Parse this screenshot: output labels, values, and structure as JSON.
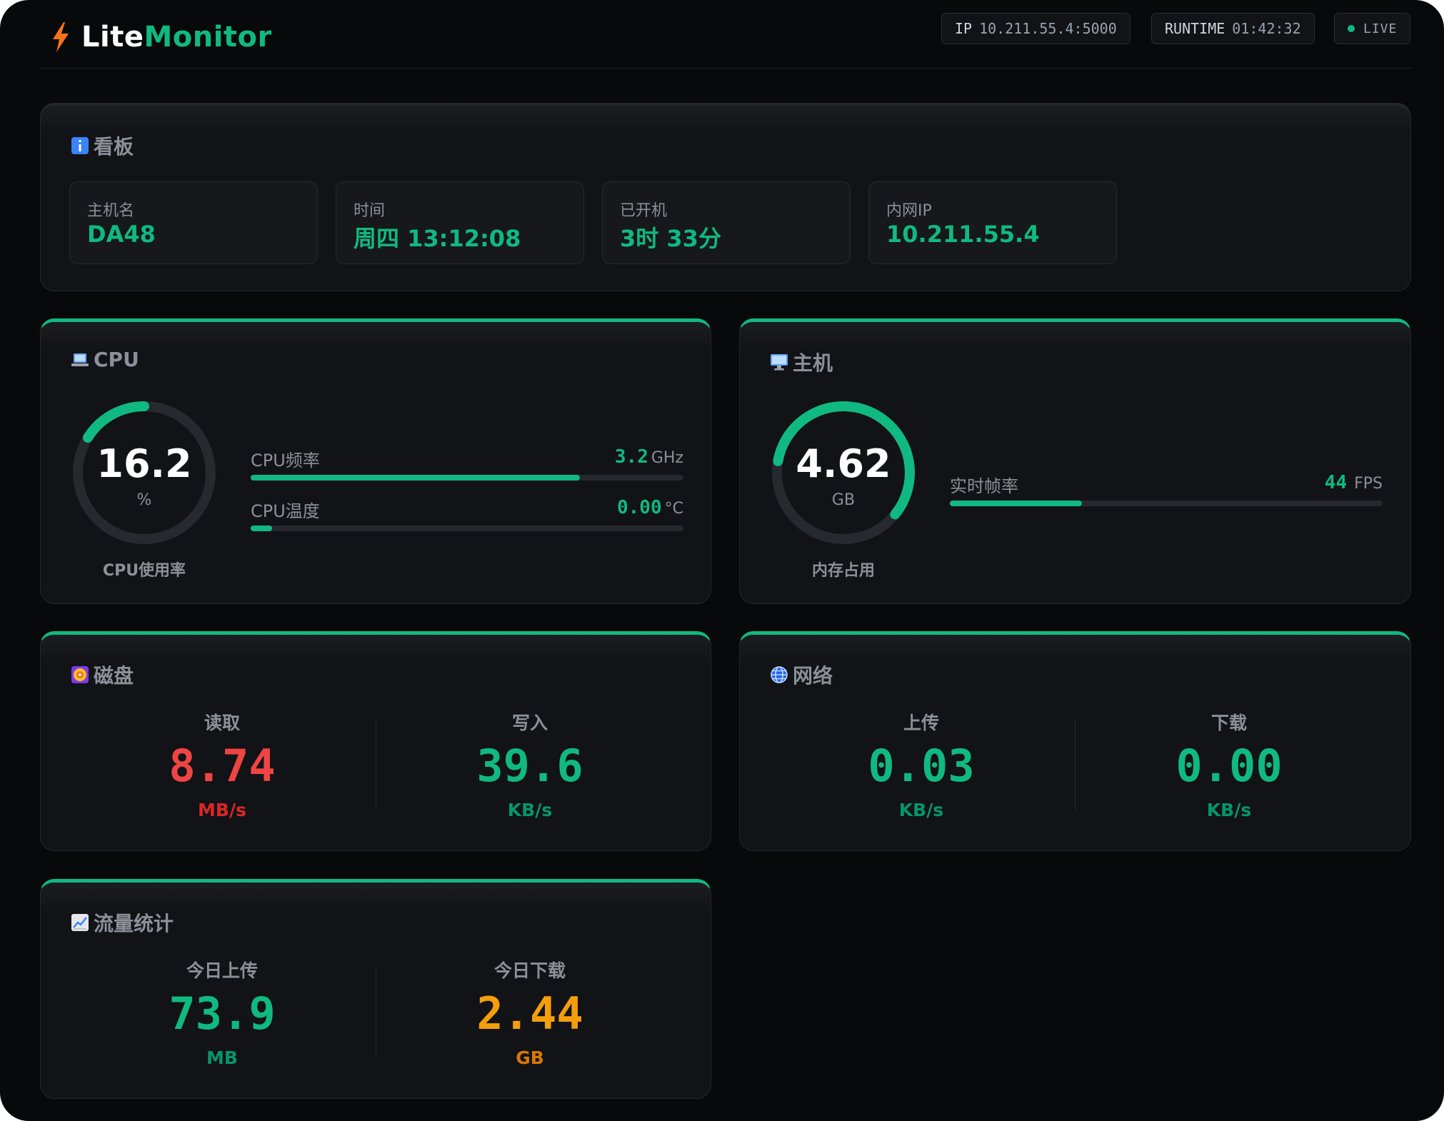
{
  "header": {
    "brand_part1": "Lite",
    "brand_part2": "Monitor",
    "ip_label": "IP",
    "ip_value": "10.211.55.4:5000",
    "runtime_label": "RUNTIME",
    "runtime_value": "01:42:32",
    "live_label": "LIVE"
  },
  "dashboard": {
    "title": "看板",
    "icon": "info-icon",
    "cards": [
      {
        "label": "主机名",
        "value": "DA48"
      },
      {
        "label": "时间",
        "value": "周四 13:12:08"
      },
      {
        "label": "已开机",
        "value": "3时 33分"
      },
      {
        "label": "内网IP",
        "value": "10.211.55.4"
      }
    ]
  },
  "cpu": {
    "title": "CPU",
    "icon": "laptop-icon",
    "usage_value": "16.2",
    "usage_unit": "%",
    "usage_caption": "CPU使用率",
    "usage_fraction": 0.162,
    "freq_label": "CPU频率",
    "freq_value": "3.2",
    "freq_unit": "GHz",
    "freq_fraction": 0.76,
    "temp_label": "CPU温度",
    "temp_value": "0.00",
    "temp_unit": "°C",
    "temp_fraction": 0.05
  },
  "host": {
    "title": "主机",
    "icon": "desktop-icon",
    "mem_value": "4.62",
    "mem_unit": "GB",
    "mem_caption": "内存占用",
    "mem_fraction": 0.58,
    "fps_label": "实时帧率",
    "fps_value": "44",
    "fps_unit": "FPS",
    "fps_fraction": 0.305
  },
  "disk": {
    "title": "磁盘",
    "icon": "disc-icon",
    "read_label": "读取",
    "read_value": "8.74",
    "read_unit": "MB/s",
    "write_label": "写入",
    "write_value": "39.6",
    "write_unit": "KB/s"
  },
  "network": {
    "title": "网络",
    "icon": "globe-icon",
    "up_label": "上传",
    "up_value": "0.03",
    "up_unit": "KB/s",
    "down_label": "下载",
    "down_value": "0.00",
    "down_unit": "KB/s"
  },
  "traffic": {
    "title": "流量统计",
    "icon": "chart-icon",
    "up_label": "今日上传",
    "up_value": "73.9",
    "up_unit": "MB",
    "down_label": "今日下载",
    "down_value": "2.44",
    "down_unit": "GB"
  },
  "colors": {
    "accent": "#10b981",
    "danger": "#ef4444",
    "warning": "#f59e0b",
    "background": "#08090b",
    "panel": "#121316"
  }
}
